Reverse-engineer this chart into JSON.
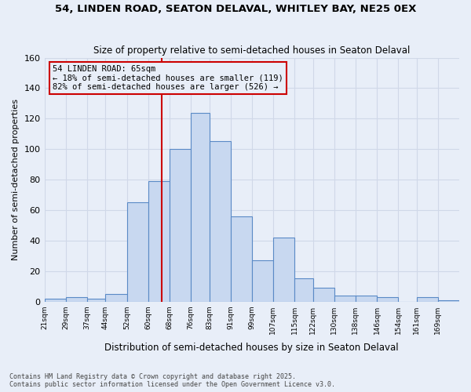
{
  "title1": "54, LINDEN ROAD, SEATON DELAVAL, WHITLEY BAY, NE25 0EX",
  "title2": "Size of property relative to semi-detached houses in Seaton Delaval",
  "xlabel": "Distribution of semi-detached houses by size in Seaton Delaval",
  "ylabel": "Number of semi-detached properties",
  "bins": [
    21,
    29,
    37,
    44,
    52,
    60,
    68,
    76,
    83,
    91,
    99,
    107,
    115,
    122,
    130,
    138,
    146,
    154,
    161,
    169,
    177
  ],
  "counts": [
    2,
    3,
    2,
    5,
    65,
    79,
    100,
    124,
    105,
    56,
    27,
    42,
    15,
    9,
    4,
    4,
    3,
    0,
    3,
    1
  ],
  "bar_facecolor": "#c8d8f0",
  "bar_edgecolor": "#5a8ac6",
  "gridcolor": "#d0d8e8",
  "bg_color": "#e8eef8",
  "vline_x": 65,
  "vline_color": "#cc0000",
  "annotation_title": "54 LINDEN ROAD: 65sqm",
  "annotation_line1": "← 18% of semi-detached houses are smaller (119)",
  "annotation_line2": "82% of semi-detached houses are larger (526) →",
  "annotation_box_edgecolor": "#cc0000",
  "footer1": "Contains HM Land Registry data © Crown copyright and database right 2025.",
  "footer2": "Contains public sector information licensed under the Open Government Licence v3.0.",
  "ylim": [
    0,
    160
  ],
  "yticks": [
    0,
    20,
    40,
    60,
    80,
    100,
    120,
    140,
    160
  ]
}
